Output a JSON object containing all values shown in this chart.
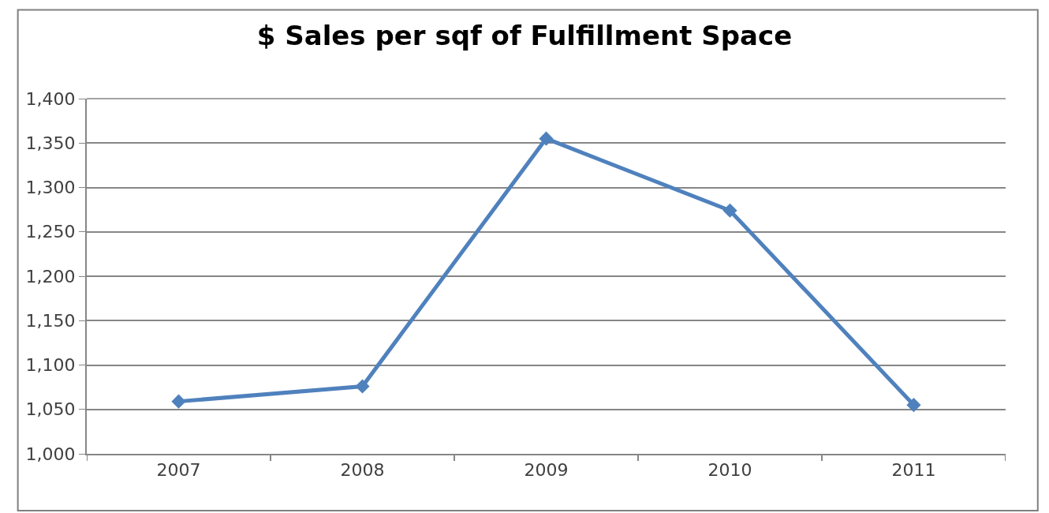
{
  "chart_data": {
    "type": "line",
    "title": "$ Sales per sqf of Fulfillment Space",
    "categories": [
      "2007",
      "2008",
      "2009",
      "2010",
      "2011"
    ],
    "series": [
      {
        "color": "#4f81bd",
        "values": [
          1059,
          1076,
          1355,
          1274,
          1055
        ]
      }
    ],
    "ylim": [
      1000,
      1400
    ],
    "yticks": [
      {
        "value": 1000,
        "label": "1,000"
      },
      {
        "value": 1050,
        "label": "1,050"
      },
      {
        "value": 1100,
        "label": "1,100"
      },
      {
        "value": 1150,
        "label": "1,150"
      },
      {
        "value": 1200,
        "label": "1,200"
      },
      {
        "value": 1250,
        "label": "1,250"
      },
      {
        "value": 1300,
        "label": "1,300"
      },
      {
        "value": 1350,
        "label": "1,350"
      },
      {
        "value": 1400,
        "label": "1,400"
      }
    ],
    "grid": "y",
    "marker": "diamond",
    "line_style": "solid"
  }
}
